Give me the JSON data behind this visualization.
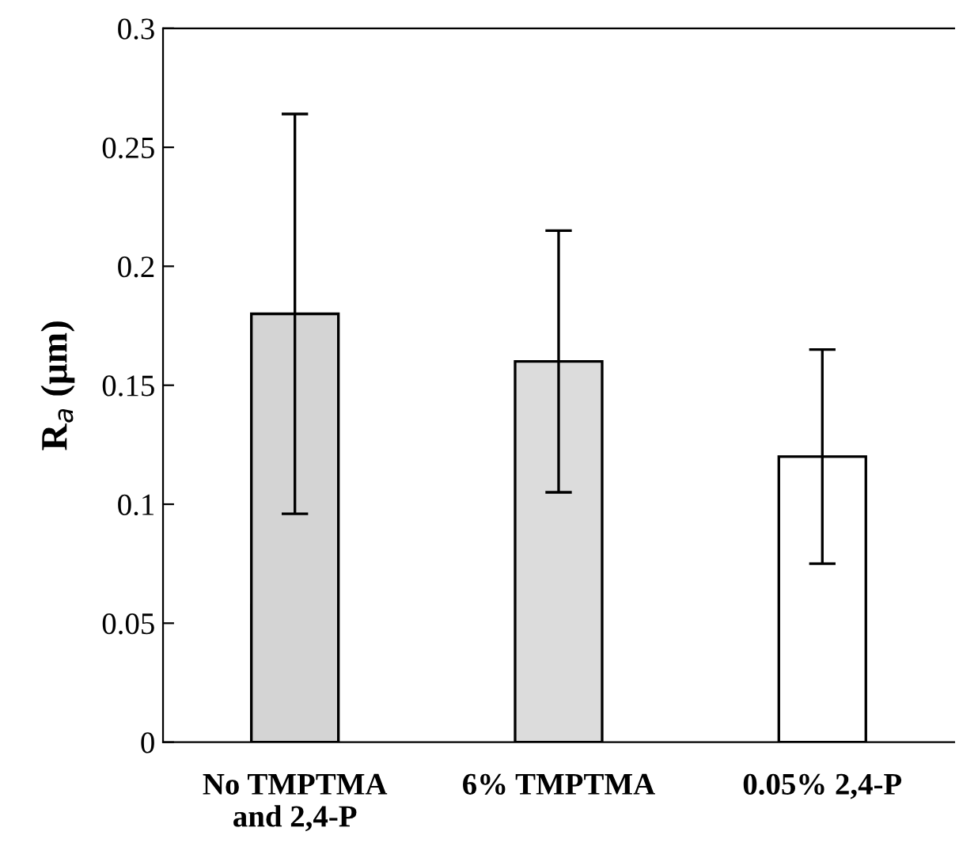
{
  "chart_data": {
    "type": "bar",
    "ylabel": "R$_{a}$ (μm)",
    "categories": [
      "No TMPTMA\nand 2,4-P",
      "6% TMPTMA",
      "0.05% 2,4-P"
    ],
    "values": [
      0.18,
      0.16,
      0.12
    ],
    "errors": [
      0.084,
      0.055,
      0.045
    ],
    "colors": [
      "#d4d4d4",
      "#dcdcdc",
      "#ffffff"
    ],
    "ylim": [
      0,
      0.3
    ],
    "yticks": [
      0,
      0.05,
      0.1,
      0.15,
      0.2,
      0.25,
      0.3
    ],
    "grid": false
  }
}
